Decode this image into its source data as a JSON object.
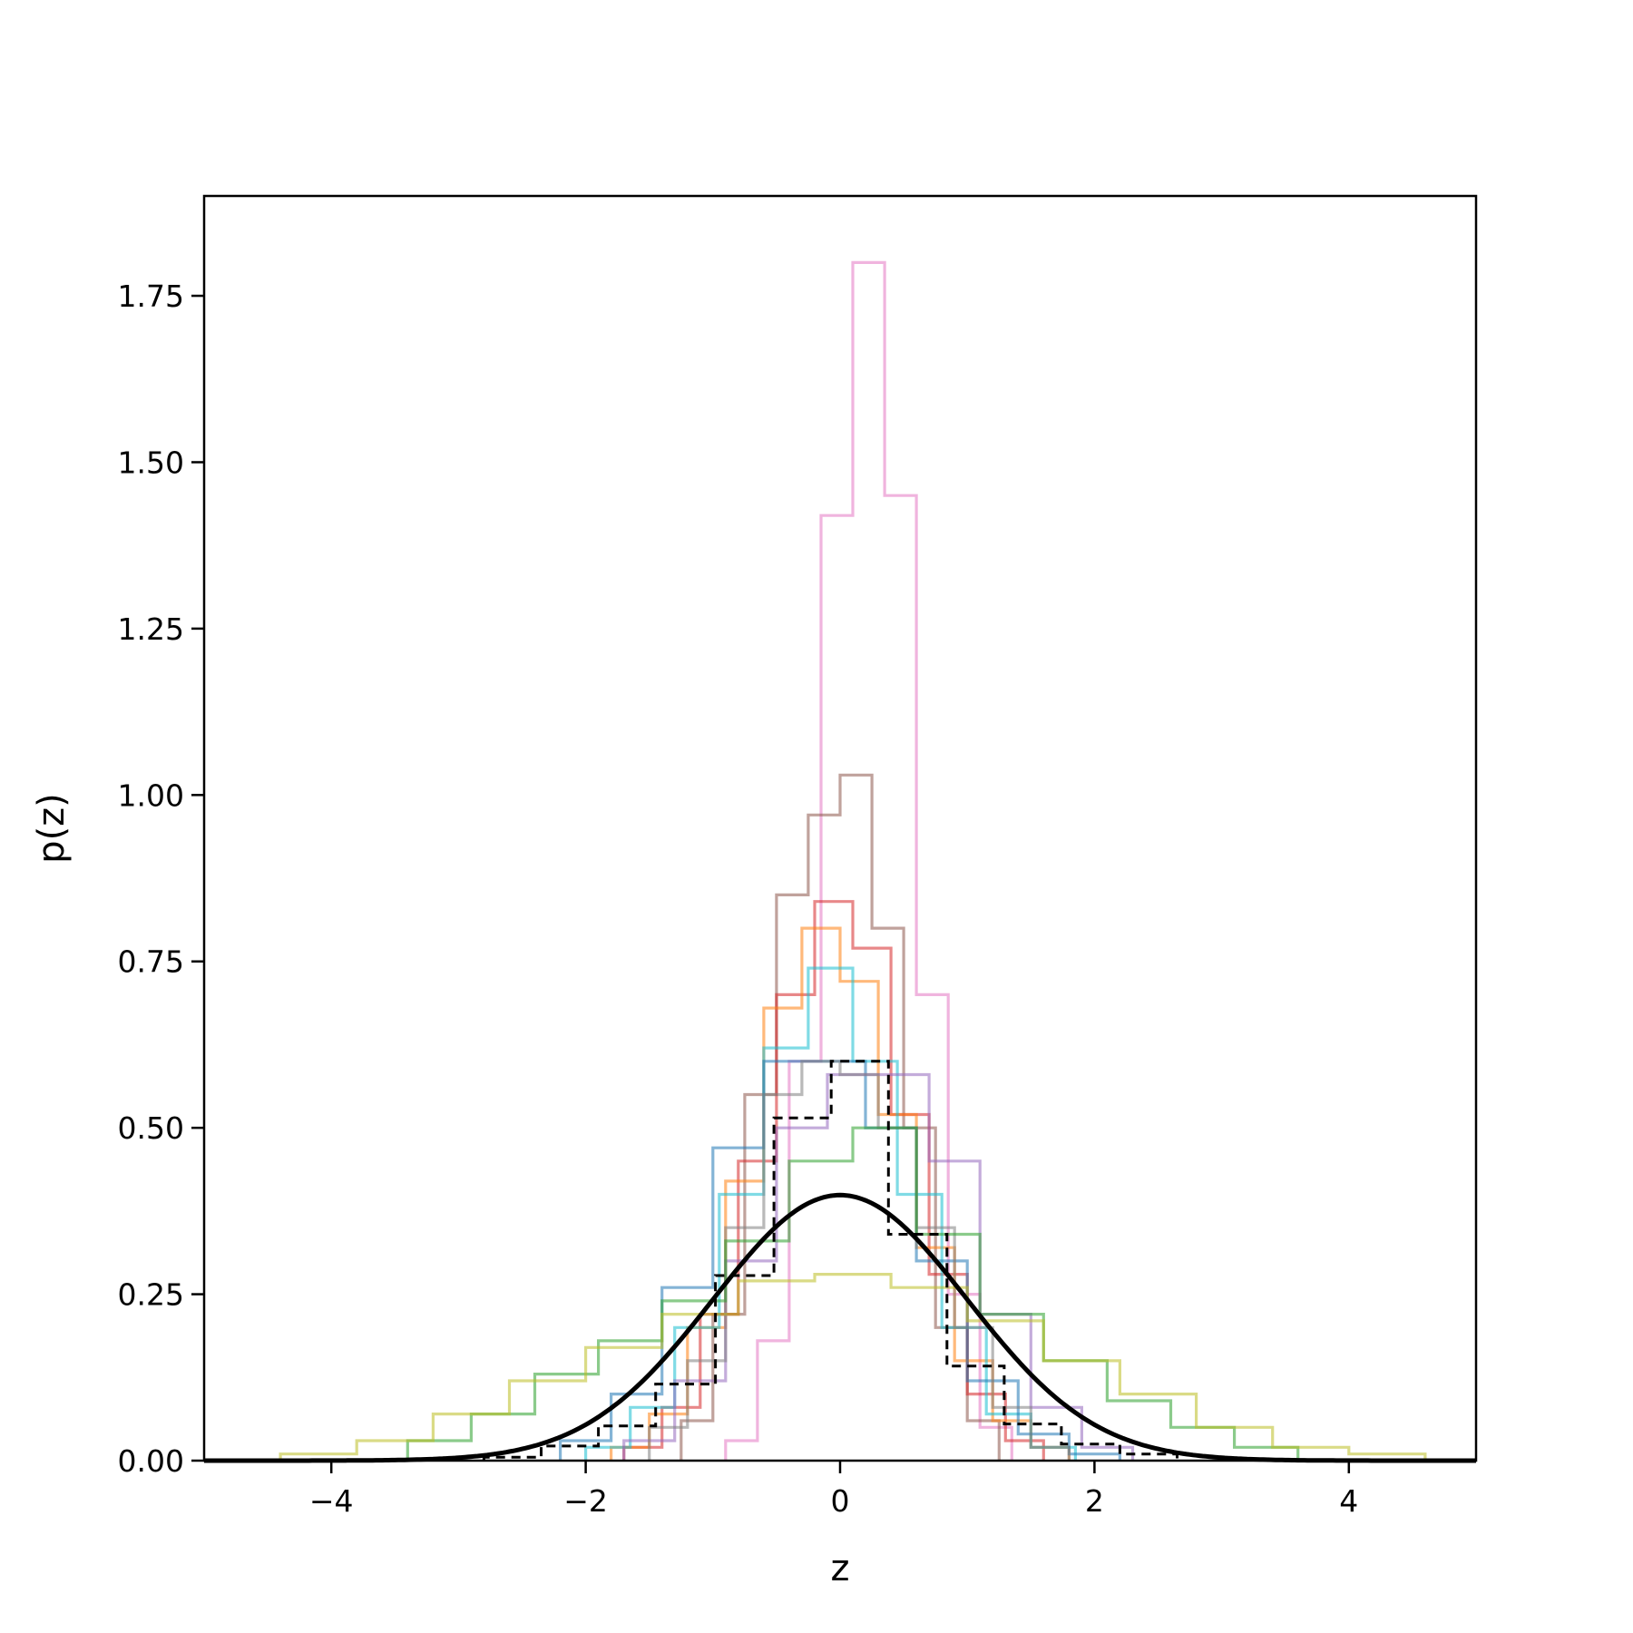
{
  "chart_data": {
    "type": "histogram",
    "xlabel": "z",
    "ylabel": "p(z)",
    "xlim": [
      -5,
      5
    ],
    "ylim": [
      0,
      1.9
    ],
    "grid": false,
    "legend": "none",
    "x_ticks": [
      {
        "value": -4,
        "label": "−4"
      },
      {
        "value": -2,
        "label": "−2"
      },
      {
        "value": 0,
        "label": "0"
      },
      {
        "value": 2,
        "label": "2"
      },
      {
        "value": 4,
        "label": "4"
      }
    ],
    "y_ticks": [
      {
        "value": 0,
        "label": "0.00"
      },
      {
        "value": 0.25,
        "label": "0.25"
      },
      {
        "value": 0.5,
        "label": "0.50"
      },
      {
        "value": 0.75,
        "label": "0.75"
      },
      {
        "value": 1.0,
        "label": "1.00"
      },
      {
        "value": 1.25,
        "label": "1.25"
      },
      {
        "value": 1.5,
        "label": "1.50"
      },
      {
        "value": 1.75,
        "label": "1.75"
      }
    ],
    "reference_curve": {
      "mean": 0,
      "std": 1,
      "color": "#000000"
    },
    "reference_histogram": {
      "color": "#000000",
      "style": "dashed",
      "edges": [
        -2.8,
        -2.35,
        -1.9,
        -1.45,
        -0.98,
        -0.52,
        -0.07,
        0.38,
        0.84,
        1.29,
        1.74,
        2.2,
        2.65
      ],
      "values": [
        0.005,
        0.022,
        0.052,
        0.115,
        0.278,
        0.515,
        0.6,
        0.34,
        0.142,
        0.055,
        0.025,
        0.01
      ]
    },
    "series": [
      {
        "color": "#e377c2",
        "edges": [
          -0.9,
          -0.65,
          -0.4,
          -0.15,
          0.1,
          0.35,
          0.6,
          0.85,
          1.1,
          1.35
        ],
        "values": [
          0.03,
          0.18,
          0.6,
          1.42,
          1.8,
          1.45,
          0.7,
          0.25,
          0.05
        ]
      },
      {
        "color": "#8c564b",
        "edges": [
          -1.25,
          -1.0,
          -0.75,
          -0.5,
          -0.25,
          0.0,
          0.25,
          0.5,
          0.75,
          1.0,
          1.25
        ],
        "values": [
          0.06,
          0.22,
          0.55,
          0.85,
          0.97,
          1.03,
          0.8,
          0.5,
          0.2,
          0.06
        ]
      },
      {
        "color": "#d62728",
        "edges": [
          -1.7,
          -1.4,
          -1.1,
          -0.8,
          -0.5,
          -0.2,
          0.1,
          0.4,
          0.7,
          1.0,
          1.3,
          1.6
        ],
        "values": [
          0.02,
          0.08,
          0.22,
          0.45,
          0.7,
          0.84,
          0.77,
          0.52,
          0.28,
          0.1,
          0.03
        ]
      },
      {
        "color": "#ff7f0e",
        "edges": [
          -1.8,
          -1.5,
          -1.2,
          -0.9,
          -0.6,
          -0.3,
          0.0,
          0.3,
          0.6,
          0.9,
          1.2,
          1.5,
          1.8
        ],
        "values": [
          0.02,
          0.07,
          0.2,
          0.42,
          0.68,
          0.8,
          0.72,
          0.52,
          0.32,
          0.15,
          0.06,
          0.02
        ]
      },
      {
        "color": "#17becf",
        "edges": [
          -2.0,
          -1.65,
          -1.3,
          -0.95,
          -0.6,
          -0.25,
          0.1,
          0.45,
          0.8,
          1.15,
          1.5,
          1.85
        ],
        "values": [
          0.02,
          0.08,
          0.2,
          0.4,
          0.62,
          0.74,
          0.6,
          0.4,
          0.2,
          0.07,
          0.02
        ]
      },
      {
        "color": "#1f77b4",
        "edges": [
          -2.2,
          -1.8,
          -1.4,
          -1.0,
          -0.6,
          -0.2,
          0.2,
          0.6,
          1.0,
          1.4,
          1.8,
          2.2
        ],
        "values": [
          0.03,
          0.1,
          0.26,
          0.47,
          0.6,
          0.6,
          0.5,
          0.3,
          0.12,
          0.04,
          0.01
        ]
      },
      {
        "color": "#9467bd",
        "edges": [
          -1.7,
          -1.3,
          -0.9,
          -0.5,
          -0.1,
          0.3,
          0.7,
          1.1,
          1.5,
          1.9,
          2.3
        ],
        "values": [
          0.03,
          0.12,
          0.3,
          0.5,
          0.58,
          0.58,
          0.45,
          0.22,
          0.08,
          0.02
        ]
      },
      {
        "color": "#7f7f7f",
        "edges": [
          -1.5,
          -1.2,
          -0.9,
          -0.6,
          -0.3,
          0.0,
          0.3,
          0.6,
          0.9,
          1.2,
          1.5,
          1.8
        ],
        "values": [
          0.05,
          0.15,
          0.35,
          0.55,
          0.6,
          0.58,
          0.5,
          0.35,
          0.2,
          0.08,
          0.02
        ]
      },
      {
        "color": "#2ca02c",
        "edges": [
          -3.4,
          -2.9,
          -2.4,
          -1.9,
          -1.4,
          -0.9,
          -0.4,
          0.1,
          0.6,
          1.1,
          1.6,
          2.1,
          2.6,
          3.1,
          3.6
        ],
        "values": [
          0.03,
          0.07,
          0.13,
          0.18,
          0.24,
          0.33,
          0.45,
          0.5,
          0.34,
          0.22,
          0.15,
          0.09,
          0.05,
          0.02
        ]
      },
      {
        "color": "#bcbd22",
        "edges": [
          -4.4,
          -3.8,
          -3.2,
          -2.6,
          -2.0,
          -1.4,
          -0.8,
          -0.2,
          0.4,
          1.0,
          1.6,
          2.2,
          2.8,
          3.4,
          4.0,
          4.6
        ],
        "values": [
          0.01,
          0.03,
          0.07,
          0.12,
          0.17,
          0.22,
          0.27,
          0.28,
          0.26,
          0.21,
          0.15,
          0.1,
          0.05,
          0.02,
          0.01
        ]
      }
    ]
  }
}
